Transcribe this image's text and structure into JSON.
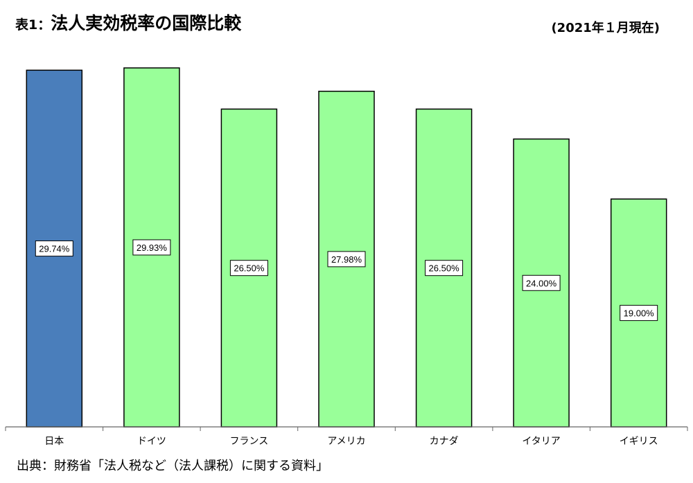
{
  "header": {
    "title_prefix": "表1：",
    "title": "法人実効税率の国際比較",
    "date_note": "(2021年１月現在)"
  },
  "footer": {
    "source": "出典：財務省「法人税など（法人課税）に関する資料」"
  },
  "colors": {
    "highlight": "#4a7ebb",
    "default": "#99ff99",
    "stroke": "#000000"
  },
  "chart_data": {
    "type": "bar",
    "categories": [
      "日本",
      "ドイツ",
      "フランス",
      "アメリカ",
      "カナダ",
      "イタリア",
      "イギリス"
    ],
    "values": [
      29.74,
      29.93,
      26.5,
      27.98,
      26.5,
      24.0,
      19.0
    ],
    "data_labels": [
      "29.74%",
      "29.93%",
      "26.50%",
      "27.98%",
      "26.50%",
      "24.00%",
      "19.00%"
    ],
    "highlight_index": 0,
    "ylim": [
      0,
      29.93
    ],
    "grid": false,
    "legend": "none"
  }
}
